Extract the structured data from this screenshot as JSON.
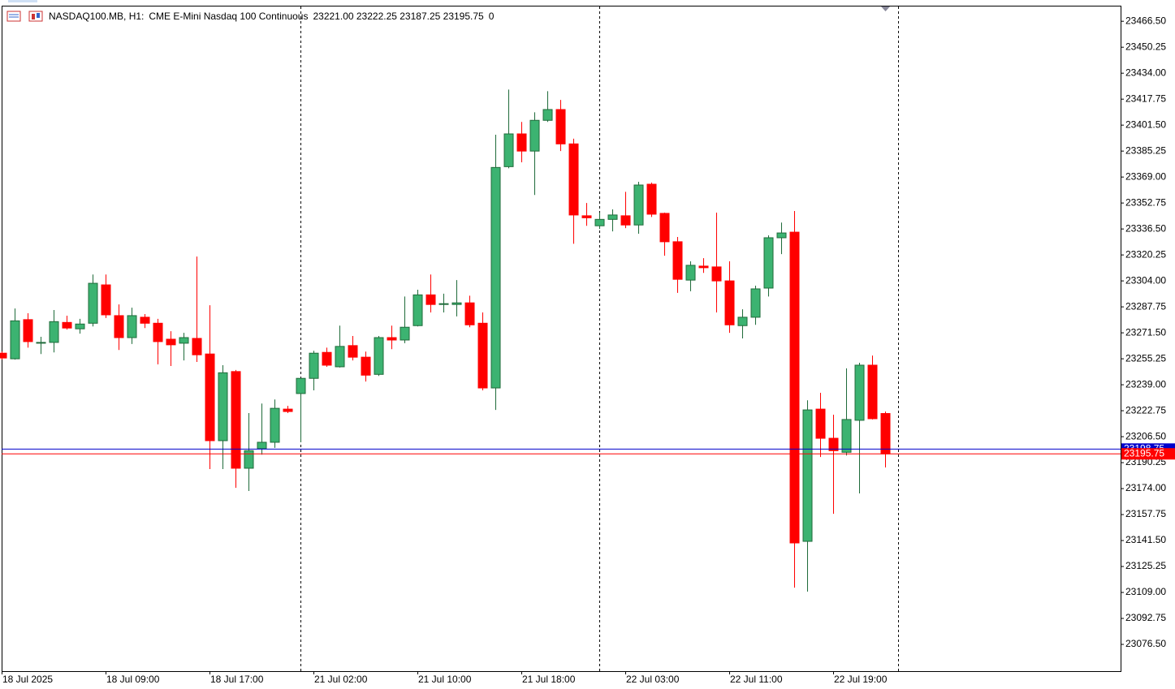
{
  "chart_data": {
    "type": "candlestick",
    "symbol": "NASDAQ100.MB, H1:",
    "description": "CME E-Mini Nasdaq 100 Continuous",
    "ohlc_text": "23221.00 23222.25 23187.25 23195.75",
    "volume_text": "0",
    "categories": [
      "18 Jul 2025",
      null,
      null,
      null,
      null,
      null,
      null,
      null,
      "18 Jul 09:00",
      null,
      null,
      null,
      null,
      null,
      null,
      null,
      "18 Jul 17:00",
      null,
      null,
      null,
      null,
      null,
      null,
      null,
      "21 Jul 02:00",
      null,
      null,
      null,
      null,
      null,
      null,
      null,
      "21 Jul 10:00",
      null,
      null,
      null,
      null,
      null,
      null,
      null,
      "21 Jul 18:00",
      null,
      null,
      null,
      null,
      null,
      null,
      null,
      "22 Jul 03:00",
      null,
      null,
      null,
      null,
      null,
      null,
      null,
      "22 Jul 11:00",
      null,
      null,
      null,
      null,
      null,
      null,
      null,
      "22 Jul 19:00",
      null,
      null,
      null,
      null
    ],
    "open": [
      23258.75,
      23255.25,
      23279.75,
      23265.0,
      23265.5,
      23278.0,
      23274.0,
      23277.5,
      23301.5,
      23282.25,
      23268.5,
      23281.25,
      23277.5,
      23267.5,
      23265.0,
      23268.0,
      23258.25,
      23204.0,
      23247.25,
      23186.75,
      23199.0,
      23203.0,
      23223.75,
      23233.5,
      23243.0,
      23259.25,
      23250.25,
      23263.5,
      23256.25,
      23245.5,
      23268.5,
      23267.0,
      23276.0,
      23295.25,
      23289.25,
      23289.25,
      23290.25,
      23277.5,
      23237.0,
      23375.5,
      23396.0,
      23385.25,
      23404.5,
      23411.25,
      23389.75,
      23344.75,
      23338.5,
      23342.5,
      23344.75,
      23339.0,
      23364.5,
      23346.25,
      23328.5,
      23304.5,
      23313.25,
      23312.75,
      23304.0,
      23276.0,
      23281.25,
      23299.5,
      23331.0,
      23334.5,
      23141.0,
      23223.75,
      23205.5,
      23196.75,
      23216.75,
      23251.25,
      23221.0
    ],
    "high": [
      23259.75,
      23286.75,
      23283.75,
      23269.0,
      23285.75,
      23282.25,
      23280.25,
      23308.0,
      23308.0,
      23289.25,
      23287.25,
      23283.25,
      23280.25,
      23272.5,
      23271.5,
      23319.25,
      23288.75,
      23251.25,
      23248.25,
      23221.25,
      23227.25,
      23229.75,
      23225.75,
      23243.0,
      23260.25,
      23262.25,
      23276.0,
      23269.5,
      23259.75,
      23269.5,
      23276.0,
      23294.25,
      23298.5,
      23308.0,
      23296.0,
      23304.5,
      23294.75,
      23284.25,
      23395.5,
      23423.75,
      23403.5,
      23409.5,
      23422.75,
      23417.25,
      23393.0,
      23352.75,
      23346.75,
      23348.75,
      23359.75,
      23366.0,
      23365.5,
      23346.75,
      23331.5,
      23316.25,
      23318.25,
      23346.75,
      23316.25,
      23286.25,
      23301.0,
      23332.5,
      23340.5,
      23347.75,
      23229.25,
      23234.0,
      23220.25,
      23249.25,
      23252.75,
      23257.25,
      23222.25
    ],
    "low": [
      23254.75,
      23254.75,
      23262.25,
      23258.25,
      23259.25,
      23273.5,
      23271.0,
      23275.5,
      23280.75,
      23260.75,
      23264.5,
      23274.5,
      23251.75,
      23250.75,
      23254.25,
      23253.25,
      23186.25,
      23186.25,
      23174.5,
      23172.5,
      23195.25,
      23199.5,
      23221.25,
      23203.0,
      23235.5,
      23250.25,
      23249.75,
      23254.25,
      23241.0,
      23244.5,
      23261.25,
      23265.0,
      23275.5,
      23284.25,
      23284.25,
      23281.75,
      23275.0,
      23235.5,
      23223.25,
      23374.5,
      23378.25,
      23357.75,
      23403.5,
      23385.25,
      23327.25,
      23338.5,
      23336.5,
      23335.0,
      23337.0,
      23333.5,
      23344.0,
      23319.75,
      23296.5,
      23297.5,
      23309.0,
      23284.25,
      23271.5,
      23268.0,
      23276.5,
      23294.25,
      23320.75,
      23112.0,
      23109.5,
      23193.75,
      23158.25,
      23194.75,
      23171.0,
      23217.25,
      23187.25
    ],
    "close": [
      23255.75,
      23279.0,
      23266.0,
      23265.5,
      23278.5,
      23274.5,
      23277.0,
      23302.5,
      23282.75,
      23268.5,
      23282.25,
      23277.5,
      23266.0,
      23264.0,
      23268.5,
      23257.75,
      23204.0,
      23246.5,
      23186.75,
      23197.75,
      23203.0,
      23224.25,
      23222.25,
      23243.0,
      23258.75,
      23251.25,
      23263.0,
      23256.25,
      23245.0,
      23268.5,
      23267.0,
      23275.0,
      23295.25,
      23289.25,
      23289.75,
      23290.25,
      23276.5,
      23237.0,
      23375.0,
      23396.0,
      23385.25,
      23404.5,
      23411.25,
      23389.75,
      23345.25,
      23343.5,
      23342.5,
      23345.25,
      23339.0,
      23364.0,
      23345.75,
      23328.5,
      23305.0,
      23313.75,
      23312.25,
      23304.0,
      23276.5,
      23281.25,
      23299.0,
      23331.0,
      23334.0,
      23140.0,
      23223.25,
      23205.5,
      23197.75,
      23217.25,
      23251.25,
      23217.75,
      23195.75
    ],
    "up_color": "#3cb371",
    "down_color": "#ff0000",
    "ylim": [
      23059.75,
      23476.25
    ],
    "yticks": [
      {
        "value": 23466.5,
        "label": "23466.50"
      },
      {
        "value": 23450.25,
        "label": "23450.25"
      },
      {
        "value": 23434,
        "label": "23434.00"
      },
      {
        "value": 23417.75,
        "label": "23417.75"
      },
      {
        "value": 23401.5,
        "label": "23401.50"
      },
      {
        "value": 23385.25,
        "label": "23385.25"
      },
      {
        "value": 23369,
        "label": "23369.00"
      },
      {
        "value": 23352.75,
        "label": "23352.75"
      },
      {
        "value": 23336.5,
        "label": "23336.50"
      },
      {
        "value": 23320.25,
        "label": "23320.25"
      },
      {
        "value": 23304,
        "label": "23304.00"
      },
      {
        "value": 23287.75,
        "label": "23287.75"
      },
      {
        "value": 23271.5,
        "label": "23271.50"
      },
      {
        "value": 23255.25,
        "label": "23255.25"
      },
      {
        "value": 23239,
        "label": "23239.00"
      },
      {
        "value": 23222.75,
        "label": "23222.75"
      },
      {
        "value": 23206.5,
        "label": "23206.50"
      },
      {
        "value": 23190.25,
        "label": "23190.25"
      },
      {
        "value": 23174,
        "label": "23174.00"
      },
      {
        "value": 23157.75,
        "label": "23157.75"
      },
      {
        "value": 23141.5,
        "label": "23141.50"
      },
      {
        "value": 23125.25,
        "label": "23125.25"
      },
      {
        "value": 23109,
        "label": "23109.00"
      },
      {
        "value": 23092.75,
        "label": "23092.75"
      },
      {
        "value": 23076.5,
        "label": "23076.50"
      }
    ],
    "price_lines": [
      {
        "value": 23198.75,
        "label": "23198.75",
        "color": "#0000cc"
      },
      {
        "value": 23195.75,
        "label": "23195.75",
        "color": "#ff0000"
      }
    ]
  }
}
